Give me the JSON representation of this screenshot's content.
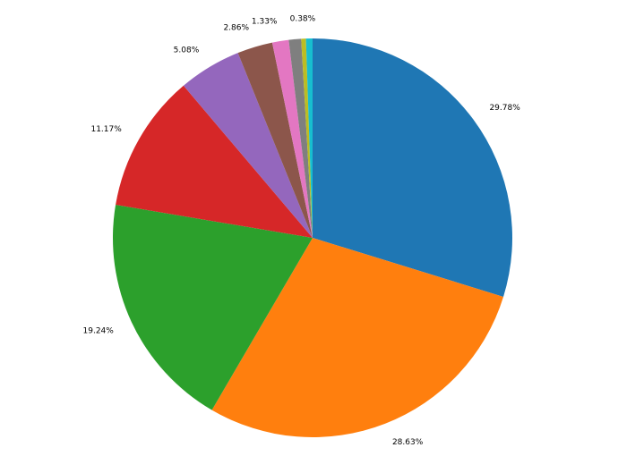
{
  "chart_data": {
    "type": "pie",
    "values": [
      29.78,
      28.63,
      19.24,
      11.17,
      5.08,
      2.86,
      1.33,
      1.0,
      0.38,
      0.53
    ],
    "value_labels": [
      "29.78%",
      "28.63%",
      "19.24%",
      "11.17%",
      "5.08%",
      "2.86%",
      "1.33%",
      null,
      "0.38%",
      null
    ],
    "colors": [
      "#1f77b4",
      "#ff7f0e",
      "#2ca02c",
      "#d62728",
      "#9467bd",
      "#8c564b",
      "#e377c2",
      "#7f7f7f",
      "#bcbd22",
      "#17becf"
    ]
  }
}
